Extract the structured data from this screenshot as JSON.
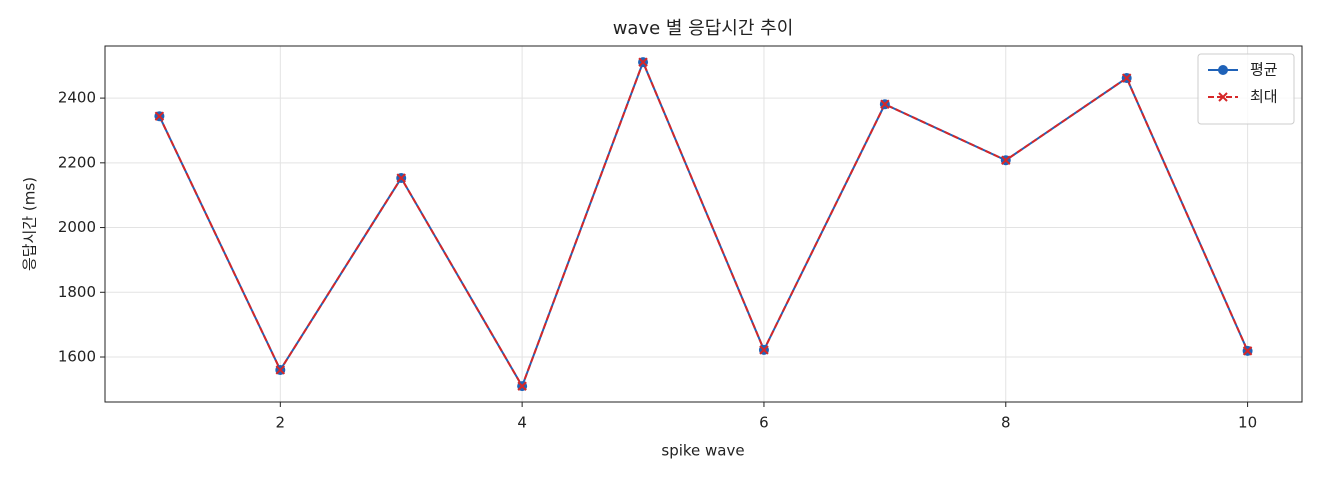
{
  "chart_data": {
    "type": "line",
    "title": "wave 별 응답시간 추이",
    "x_label": "spike wave",
    "y_label": "응답시간 (ms)",
    "x": [
      1,
      2,
      3,
      4,
      5,
      6,
      7,
      8,
      9,
      10
    ],
    "series": [
      {
        "name": "평균",
        "color": "#1f62b8",
        "linestyle": "solid",
        "marker": "o",
        "values": [
          2344,
          1560,
          2153,
          1510,
          2511,
          1622,
          2381,
          2208,
          2462,
          1619
        ]
      },
      {
        "name": "최대",
        "color": "#d62728",
        "linestyle": "dashed",
        "marker": "x",
        "values": [
          2344,
          1560,
          2153,
          1510,
          2511,
          1622,
          2381,
          2208,
          2462,
          1619
        ]
      }
    ],
    "xlim": [
      0.55,
      10.45
    ],
    "ylim": [
      1461,
      2561
    ],
    "xticks": [
      2,
      4,
      6,
      8,
      10
    ],
    "yticks": [
      1600,
      1800,
      2000,
      2200,
      2400
    ],
    "grid": true,
    "legend": "upper right"
  }
}
